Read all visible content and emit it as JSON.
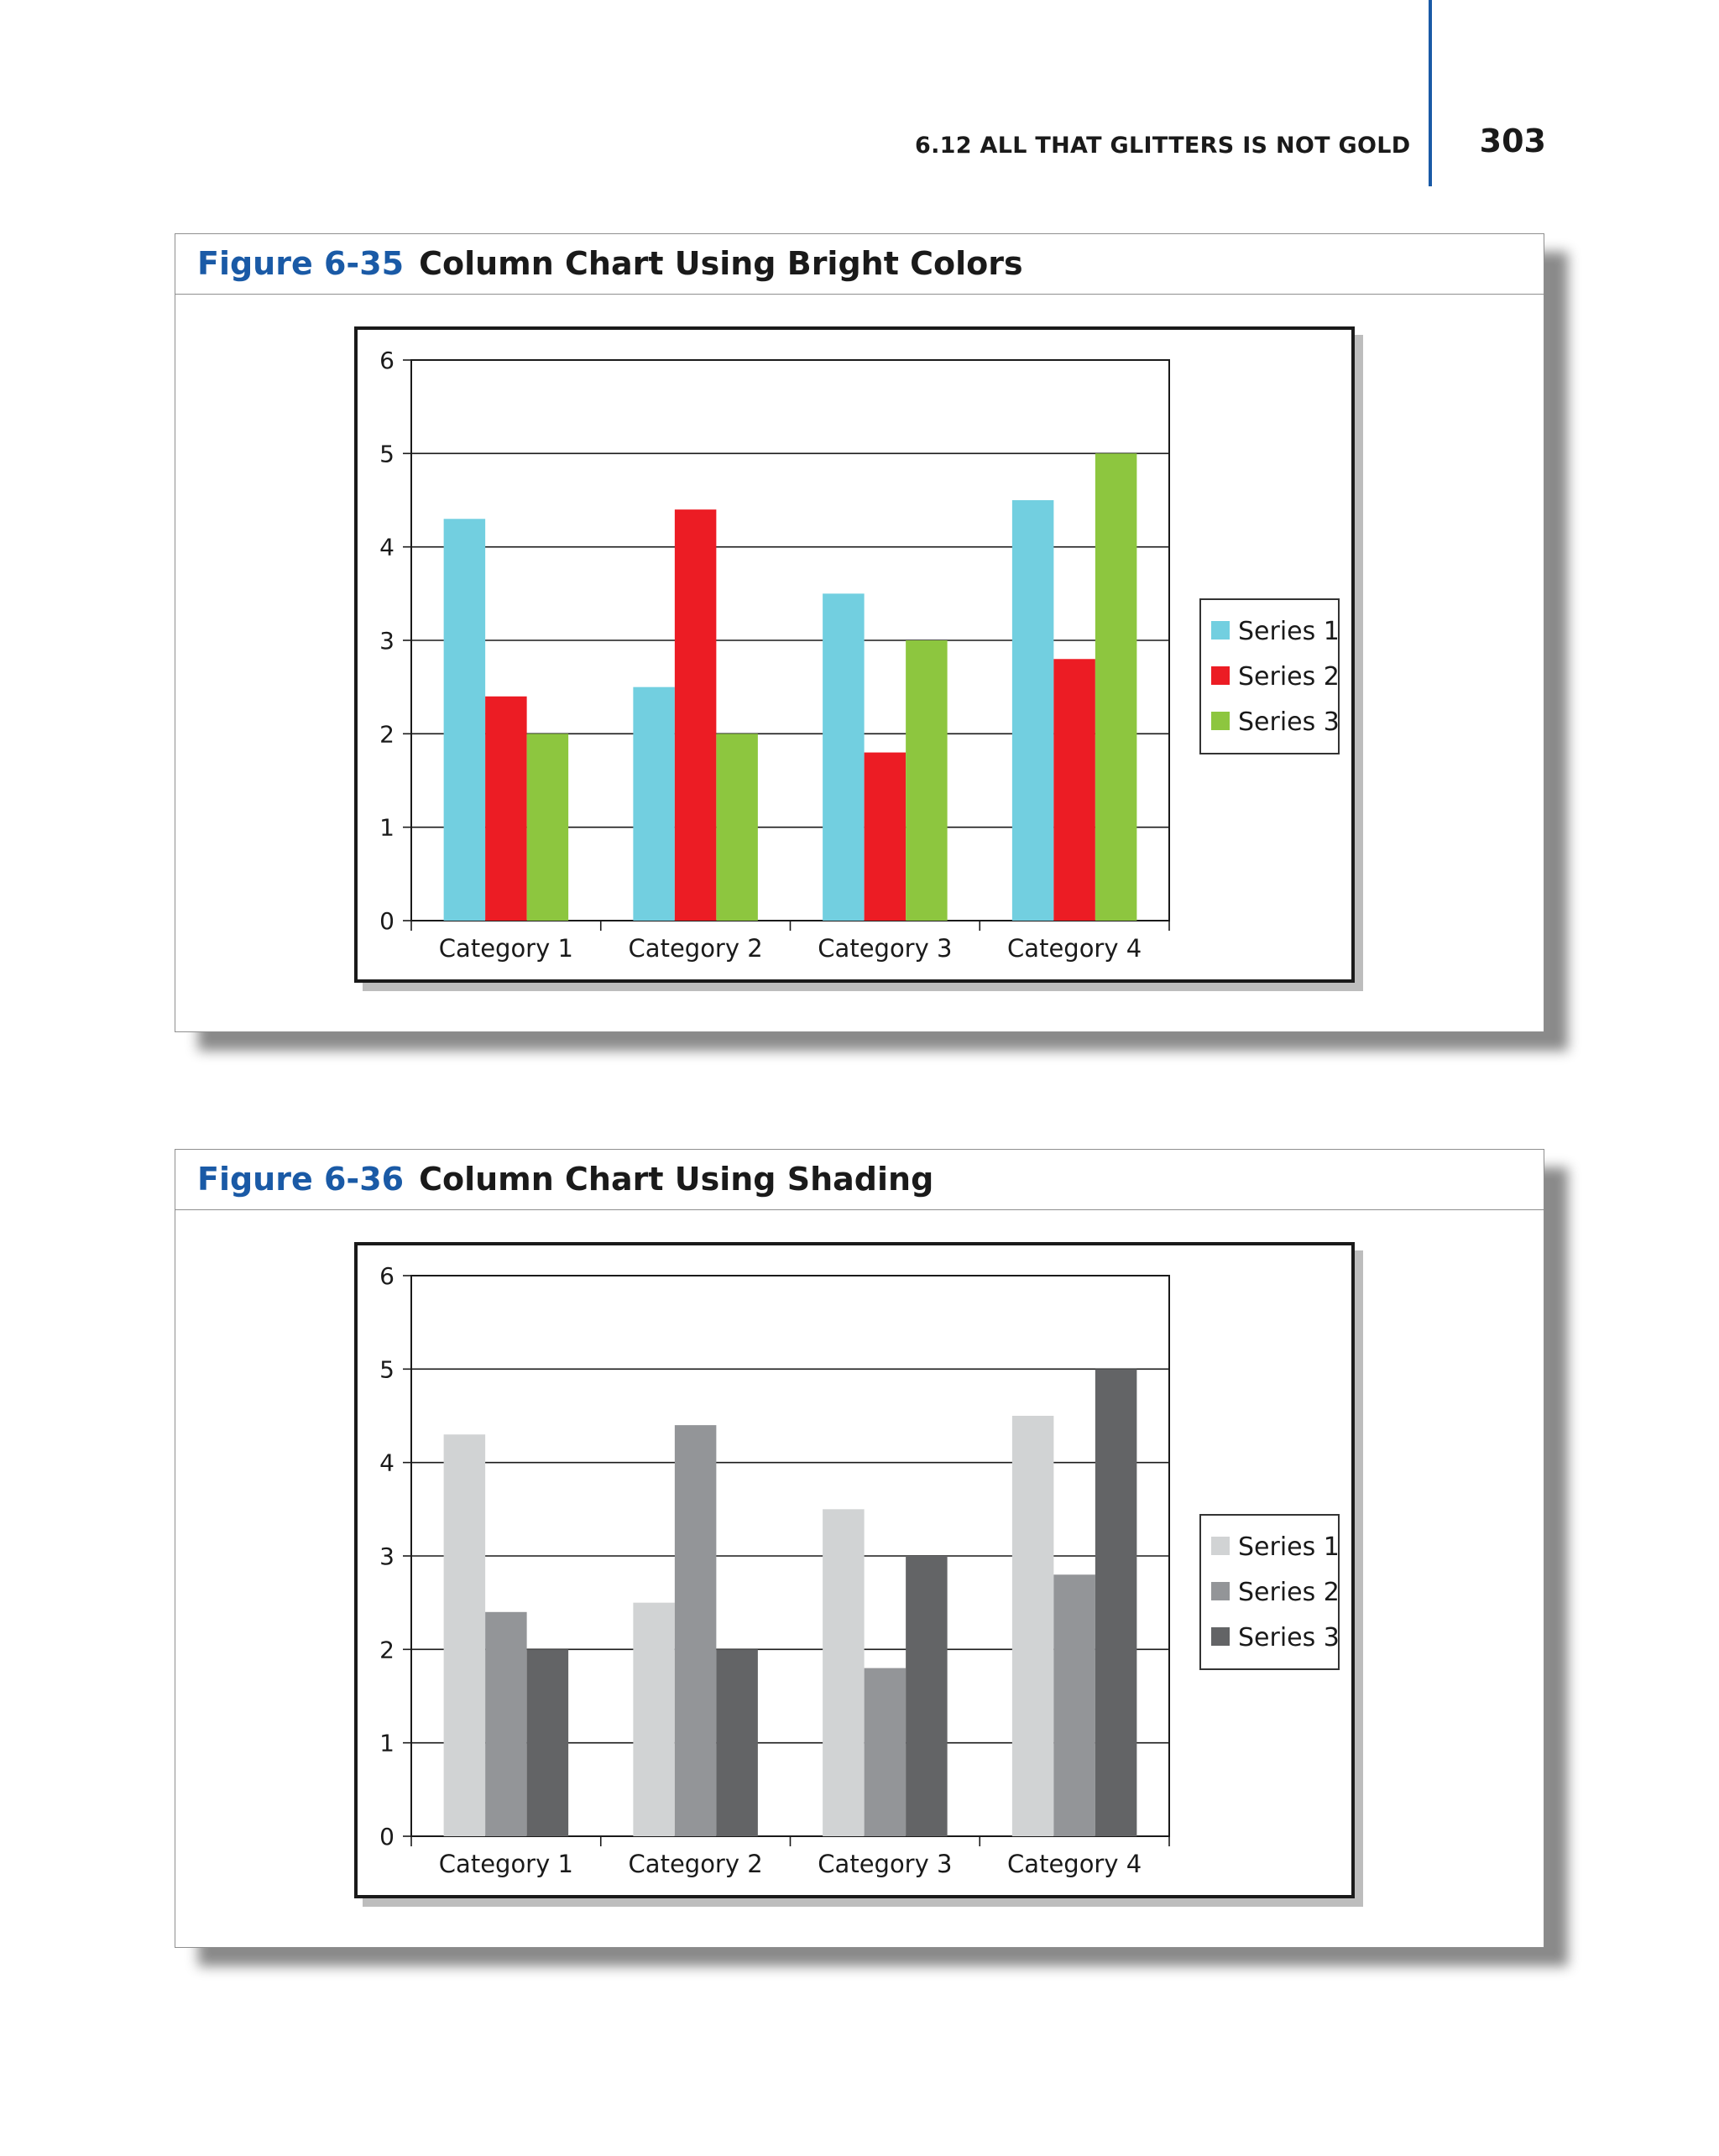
{
  "header": {
    "section_title": "6.12 ALL THAT GLITTERS IS NOT GOLD",
    "page_number": "303"
  },
  "figures": [
    {
      "number": "Figure 6-35",
      "title": "Column Chart Using Bright Colors",
      "colors": [
        "#72cfe0",
        "#ec1c24",
        "#8dc63f"
      ]
    },
    {
      "number": "Figure 6-36",
      "title": "Column Chart Using Shading",
      "colors": [
        "#d1d3d4",
        "#939598",
        "#636466"
      ]
    }
  ],
  "chart_data": [
    {
      "type": "bar",
      "title": "Column Chart Using Bright Colors",
      "categories": [
        "Category 1",
        "Category 2",
        "Category 3",
        "Category 4"
      ],
      "series": [
        {
          "name": "Series 1",
          "values": [
            4.3,
            2.5,
            3.5,
            4.5
          ]
        },
        {
          "name": "Series 2",
          "values": [
            2.4,
            4.4,
            1.8,
            2.8
          ]
        },
        {
          "name": "Series 3",
          "values": [
            2,
            2,
            3,
            5
          ]
        }
      ],
      "yticks": [
        "0",
        "1",
        "2",
        "3",
        "4",
        "5",
        "6"
      ],
      "ylim": [
        0,
        6
      ],
      "xlabel": "",
      "ylabel": "",
      "grid": true,
      "legend": "right"
    },
    {
      "type": "bar",
      "title": "Column Chart Using Shading",
      "categories": [
        "Category 1",
        "Category 2",
        "Category 3",
        "Category 4"
      ],
      "series": [
        {
          "name": "Series 1",
          "values": [
            4.3,
            2.5,
            3.5,
            4.5
          ]
        },
        {
          "name": "Series 2",
          "values": [
            2.4,
            4.4,
            1.8,
            2.8
          ]
        },
        {
          "name": "Series 3",
          "values": [
            2,
            2,
            3,
            5
          ]
        }
      ],
      "yticks": [
        "0",
        "1",
        "2",
        "3",
        "4",
        "5",
        "6"
      ],
      "ylim": [
        0,
        6
      ],
      "xlabel": "",
      "ylabel": "",
      "grid": true,
      "legend": "right"
    }
  ]
}
